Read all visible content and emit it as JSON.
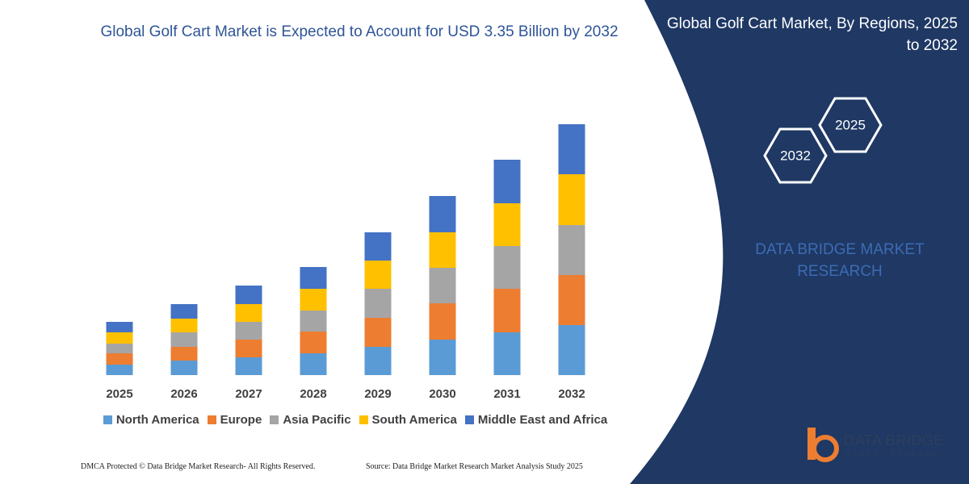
{
  "chart_data": {
    "type": "stacked_bar",
    "title": "Global Golf Cart Market is Expected to Account for USD 3.35 Billion by 2032",
    "categories": [
      "2025",
      "2026",
      "2027",
      "2028",
      "2029",
      "2030",
      "2031",
      "2032"
    ],
    "series": [
      {
        "name": "North America",
        "color": "#5b9bd5",
        "values": [
          13,
          18,
          22,
          27,
          35,
          44,
          53,
          62
        ]
      },
      {
        "name": "Europe",
        "color": "#ed7d31",
        "values": [
          14,
          17,
          22,
          27,
          36,
          45,
          54,
          62
        ]
      },
      {
        "name": "Asia Pacific",
        "color": "#a5a5a5",
        "values": [
          12,
          18,
          22,
          26,
          36,
          44,
          53,
          62
        ]
      },
      {
        "name": "South America",
        "color": "#ffc000",
        "values": [
          14,
          17,
          22,
          27,
          35,
          44,
          53,
          63
        ]
      },
      {
        "name": "Middle East and Africa",
        "color": "#4472c4",
        "values": [
          13,
          18,
          23,
          27,
          35,
          45,
          54,
          62
        ]
      }
    ]
  },
  "panel": {
    "title": "Global Golf Cart Market, By Regions, 2025 to 2032",
    "hex_years": [
      "2025",
      "2032"
    ],
    "brand": "DATA BRIDGE MARKET RESEARCH",
    "logo_name": "DATA BRIDGE",
    "logo_sub": "MARKET RESEARCH"
  },
  "footer": {
    "copyright": "DMCA Protected © Data Bridge Market Research- All Rights Reserved.",
    "source": "Source: Data Bridge Market Research Market Analysis Study 2025"
  }
}
